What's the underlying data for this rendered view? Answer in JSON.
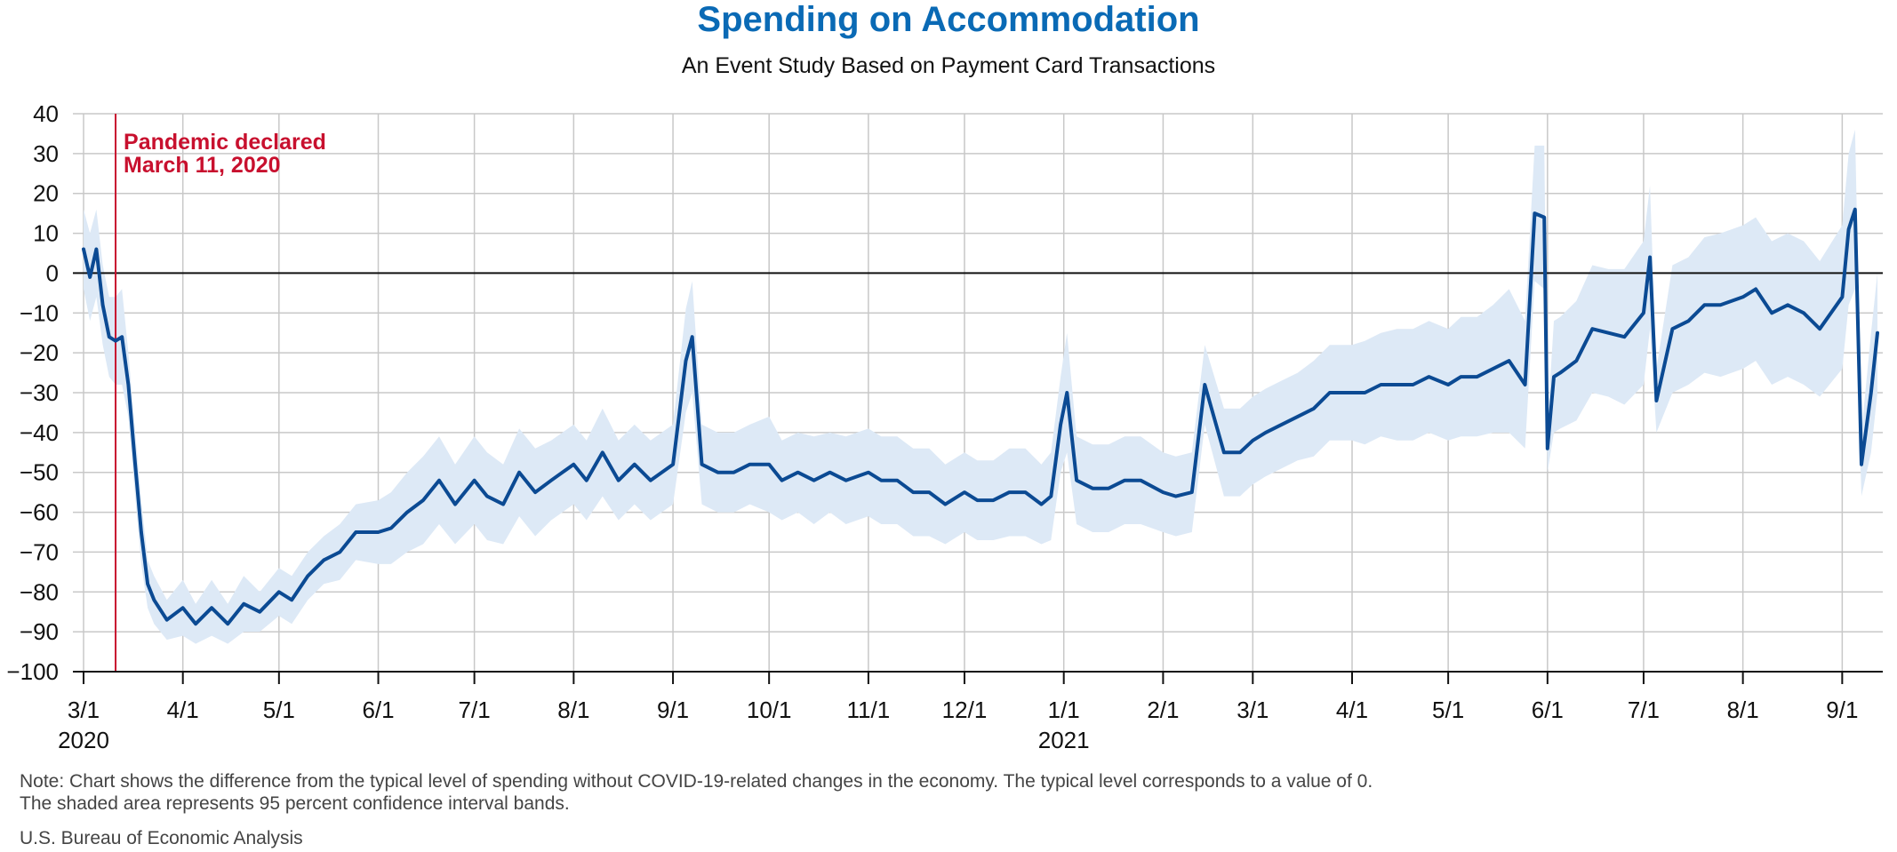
{
  "title": "Spending on Accommodation",
  "subtitle": "An Event Study Based on Payment Card Transactions",
  "note_line1": "Note: Chart shows the difference from the typical level of spending without COVID-19-related changes in the economy. The typical level corresponds to a value of 0.",
  "note_line2": "The shaded area represents 95 percent confidence interval bands.",
  "source": "U.S. Bureau of Economic Analysis",
  "colors": {
    "title": "#0a6ab5",
    "line": "#0b4a93",
    "band": "#dde9f6",
    "event": "#c8102e",
    "grid": "#c8c8c8",
    "zero": "#111111"
  },
  "chart_data": {
    "type": "line",
    "title": "Spending on Accommodation",
    "subtitle": "An Event Study Based on Payment Card Transactions",
    "xlabel": "",
    "ylabel": "",
    "x_range": [
      "2020-03-01",
      "2021-09-12"
    ],
    "ylim": [
      -100,
      40
    ],
    "yticks": [
      40,
      30,
      20,
      10,
      0,
      -10,
      -20,
      -30,
      -40,
      -50,
      -60,
      -70,
      -80,
      -90,
      -100
    ],
    "grid": true,
    "ytick_labels": [
      "40",
      "30",
      "20",
      "10",
      "0",
      "−10",
      "−20",
      "−30",
      "−40",
      "−50",
      "−60",
      "−70",
      "−80",
      "−90",
      "−100"
    ],
    "xticks": [
      {
        "date": "2020-03-01",
        "label": "3/1",
        "year": "2020"
      },
      {
        "date": "2020-04-01",
        "label": "4/1"
      },
      {
        "date": "2020-05-01",
        "label": "5/1"
      },
      {
        "date": "2020-06-01",
        "label": "6/1"
      },
      {
        "date": "2020-07-01",
        "label": "7/1"
      },
      {
        "date": "2020-08-01",
        "label": "8/1"
      },
      {
        "date": "2020-09-01",
        "label": "9/1"
      },
      {
        "date": "2020-10-01",
        "label": "10/1"
      },
      {
        "date": "2020-11-01",
        "label": "11/1"
      },
      {
        "date": "2020-12-01",
        "label": "12/1"
      },
      {
        "date": "2021-01-01",
        "label": "1/1",
        "year": "2021"
      },
      {
        "date": "2021-02-01",
        "label": "2/1"
      },
      {
        "date": "2021-03-01",
        "label": "3/1"
      },
      {
        "date": "2021-04-01",
        "label": "4/1"
      },
      {
        "date": "2021-05-01",
        "label": "5/1"
      },
      {
        "date": "2021-06-01",
        "label": "6/1"
      },
      {
        "date": "2021-07-01",
        "label": "7/1"
      },
      {
        "date": "2021-08-01",
        "label": "8/1"
      },
      {
        "date": "2021-09-01",
        "label": "9/1"
      }
    ],
    "annotations": [
      {
        "date": "2020-03-11",
        "text_line1": "Pandemic declared",
        "text_line2": "March 11, 2020"
      }
    ],
    "series": [
      {
        "type": "line",
        "x": [
          "2020-03-01",
          "2020-03-03",
          "2020-03-05",
          "2020-03-07",
          "2020-03-09",
          "2020-03-11",
          "2020-03-13",
          "2020-03-15",
          "2020-03-17",
          "2020-03-19",
          "2020-03-21",
          "2020-03-23",
          "2020-03-27",
          "2020-04-01",
          "2020-04-05",
          "2020-04-10",
          "2020-04-15",
          "2020-04-20",
          "2020-04-25",
          "2020-05-01",
          "2020-05-05",
          "2020-05-10",
          "2020-05-15",
          "2020-05-20",
          "2020-05-25",
          "2020-06-01",
          "2020-06-05",
          "2020-06-10",
          "2020-06-15",
          "2020-06-20",
          "2020-06-25",
          "2020-07-01",
          "2020-07-05",
          "2020-07-10",
          "2020-07-15",
          "2020-07-20",
          "2020-07-25",
          "2020-08-01",
          "2020-08-05",
          "2020-08-10",
          "2020-08-15",
          "2020-08-20",
          "2020-08-25",
          "2020-09-01",
          "2020-09-05",
          "2020-09-07",
          "2020-09-10",
          "2020-09-15",
          "2020-09-20",
          "2020-09-25",
          "2020-10-01",
          "2020-10-05",
          "2020-10-10",
          "2020-10-15",
          "2020-10-20",
          "2020-10-25",
          "2020-11-01",
          "2020-11-05",
          "2020-11-10",
          "2020-11-15",
          "2020-11-20",
          "2020-11-25",
          "2020-12-01",
          "2020-12-05",
          "2020-12-10",
          "2020-12-15",
          "2020-12-20",
          "2020-12-25",
          "2020-12-28",
          "2020-12-31",
          "2021-01-02",
          "2021-01-05",
          "2021-01-10",
          "2021-01-15",
          "2021-01-20",
          "2021-01-25",
          "2021-02-01",
          "2021-02-05",
          "2021-02-10",
          "2021-02-14",
          "2021-02-20",
          "2021-02-25",
          "2021-03-01",
          "2021-03-05",
          "2021-03-10",
          "2021-03-15",
          "2021-03-20",
          "2021-03-25",
          "2021-04-01",
          "2021-04-05",
          "2021-04-10",
          "2021-04-15",
          "2021-04-20",
          "2021-04-25",
          "2021-05-01",
          "2021-05-05",
          "2021-05-10",
          "2021-05-15",
          "2021-05-20",
          "2021-05-25",
          "2021-05-28",
          "2021-05-31",
          "2021-06-01",
          "2021-06-03",
          "2021-06-05",
          "2021-06-10",
          "2021-06-15",
          "2021-06-20",
          "2021-06-25",
          "2021-07-01",
          "2021-07-03",
          "2021-07-05",
          "2021-07-10",
          "2021-07-15",
          "2021-07-20",
          "2021-07-25",
          "2021-08-01",
          "2021-08-05",
          "2021-08-10",
          "2021-08-15",
          "2021-08-20",
          "2021-08-25",
          "2021-09-01",
          "2021-09-03",
          "2021-09-05",
          "2021-09-07",
          "2021-09-10",
          "2021-09-12"
        ],
        "y": [
          6,
          -1,
          6,
          -8,
          -16,
          -17,
          -16,
          -28,
          -47,
          -65,
          -78,
          -82,
          -87,
          -84,
          -88,
          -84,
          -88,
          -83,
          -85,
          -80,
          -82,
          -76,
          -72,
          -70,
          -65,
          -65,
          -64,
          -60,
          -57,
          -52,
          -58,
          -52,
          -56,
          -58,
          -50,
          -55,
          -52,
          -48,
          -52,
          -45,
          -52,
          -48,
          -52,
          -48,
          -22,
          -16,
          -48,
          -50,
          -50,
          -48,
          -48,
          -52,
          -50,
          -52,
          -50,
          -52,
          -50,
          -52,
          -52,
          -55,
          -55,
          -58,
          -55,
          -57,
          -57,
          -55,
          -55,
          -58,
          -56,
          -38,
          -30,
          -52,
          -54,
          -54,
          -52,
          -52,
          -55,
          -56,
          -55,
          -28,
          -45,
          -45,
          -42,
          -40,
          -38,
          -36,
          -34,
          -30,
          -30,
          -30,
          -28,
          -28,
          -28,
          -26,
          -28,
          -26,
          -26,
          -24,
          -22,
          -28,
          15,
          14,
          -44,
          -26,
          -25,
          -22,
          -14,
          -15,
          -16,
          -10,
          4,
          -32,
          -14,
          -12,
          -8,
          -8,
          -6,
          -4,
          -10,
          -8,
          -10,
          -14,
          -6,
          11,
          16,
          -48,
          -30,
          -15
        ],
        "band_lower": [
          -4,
          -12,
          -6,
          -18,
          -26,
          -28,
          -28,
          -36,
          -55,
          -73,
          -84,
          -88,
          -92,
          -91,
          -93,
          -91,
          -93,
          -90,
          -90,
          -86,
          -88,
          -82,
          -78,
          -77,
          -72,
          -73,
          -73,
          -70,
          -68,
          -63,
          -68,
          -63,
          -67,
          -68,
          -61,
          -66,
          -62,
          -58,
          -62,
          -56,
          -62,
          -58,
          -62,
          -58,
          -35,
          -30,
          -58,
          -60,
          -60,
          -58,
          -60,
          -62,
          -60,
          -63,
          -60,
          -63,
          -61,
          -63,
          -63,
          -66,
          -66,
          -68,
          -65,
          -67,
          -67,
          -66,
          -66,
          -68,
          -67,
          -50,
          -45,
          -63,
          -65,
          -65,
          -63,
          -63,
          -65,
          -66,
          -65,
          -38,
          -56,
          -56,
          -53,
          -51,
          -49,
          -47,
          -46,
          -42,
          -42,
          -43,
          -41,
          -42,
          -42,
          -40,
          -42,
          -41,
          -41,
          -40,
          -40,
          -44,
          -2,
          -4,
          -50,
          -40,
          -39,
          -37,
          -30,
          -31,
          -33,
          -28,
          -14,
          -40,
          -30,
          -28,
          -25,
          -26,
          -24,
          -22,
          -28,
          -26,
          -28,
          -31,
          -24,
          -8,
          -4,
          -56,
          -45,
          -30
        ],
        "band_upper": [
          16,
          10,
          16,
          2,
          -6,
          -6,
          -4,
          -20,
          -39,
          -57,
          -72,
          -76,
          -82,
          -77,
          -83,
          -77,
          -83,
          -76,
          -80,
          -74,
          -76,
          -70,
          -66,
          -63,
          -58,
          -57,
          -55,
          -50,
          -46,
          -41,
          -48,
          -41,
          -45,
          -48,
          -39,
          -44,
          -42,
          -38,
          -42,
          -34,
          -42,
          -38,
          -42,
          -38,
          -9,
          -2,
          -38,
          -40,
          -40,
          -38,
          -36,
          -42,
          -40,
          -41,
          -40,
          -41,
          -39,
          -41,
          -41,
          -44,
          -44,
          -48,
          -45,
          -47,
          -47,
          -44,
          -44,
          -48,
          -45,
          -26,
          -15,
          -41,
          -43,
          -43,
          -41,
          -41,
          -45,
          -46,
          -45,
          -18,
          -34,
          -34,
          -31,
          -29,
          -27,
          -25,
          -22,
          -18,
          -18,
          -17,
          -15,
          -14,
          -14,
          -12,
          -14,
          -11,
          -11,
          -8,
          -4,
          -12,
          32,
          32,
          -38,
          -12,
          -11,
          -7,
          2,
          1,
          1,
          8,
          22,
          -24,
          2,
          4,
          9,
          10,
          12,
          14,
          8,
          10,
          8,
          3,
          12,
          30,
          36,
          -40,
          -15,
          0
        ]
      }
    ]
  }
}
